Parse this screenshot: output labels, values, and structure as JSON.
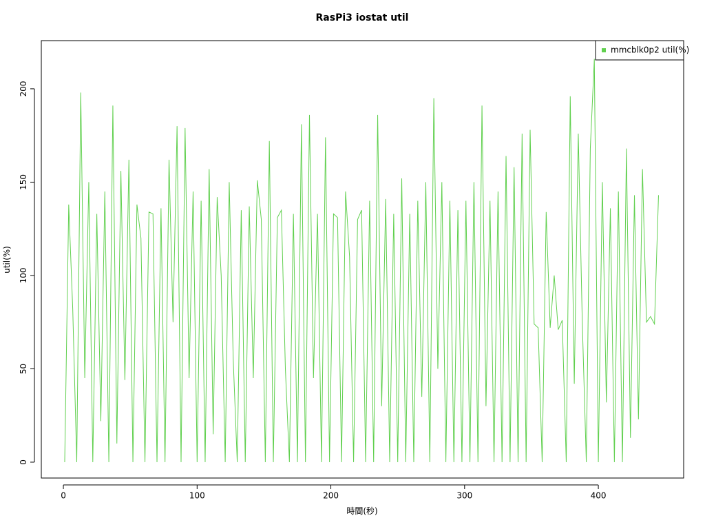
{
  "chart_data": {
    "type": "line",
    "title": "RasPi3 iostat util",
    "x_label": "時間(秒)",
    "y_label": "util(%)",
    "x": [
      1,
      4,
      7,
      10,
      13,
      16,
      19,
      22,
      25,
      28,
      31,
      34,
      37,
      40,
      43,
      46,
      49,
      52,
      55,
      58,
      61,
      64,
      67,
      70,
      73,
      76,
      79,
      82,
      85,
      88,
      91,
      94,
      97,
      100,
      103,
      106,
      109,
      112,
      115,
      118,
      121,
      124,
      127,
      130,
      133,
      136,
      139,
      142,
      145,
      148,
      151,
      154,
      157,
      160,
      163,
      166,
      169,
      172,
      175,
      178,
      181,
      184,
      187,
      190,
      193,
      196,
      199,
      202,
      205,
      208,
      211,
      214,
      217,
      220,
      223,
      226,
      229,
      232,
      235,
      238,
      241,
      244,
      247,
      250,
      253,
      256,
      259,
      262,
      265,
      268,
      271,
      274,
      277,
      280,
      283,
      286,
      289,
      292,
      295,
      298,
      301,
      304,
      307,
      310,
      313,
      316,
      319,
      322,
      325,
      328,
      331,
      334,
      337,
      340,
      343,
      346,
      349,
      352,
      355,
      358,
      361,
      364,
      367,
      370,
      373,
      376,
      379,
      382,
      385,
      388,
      391,
      394,
      397,
      400,
      403,
      406,
      409,
      412,
      415,
      418,
      421,
      424,
      427,
      430,
      433,
      436,
      439,
      442,
      445
    ],
    "series": [
      {
        "name": "mmcblk0p2 util(%)",
        "color": "#61d04f",
        "values": [
          0,
          138,
          82,
          0,
          198,
          45,
          150,
          0,
          133,
          22,
          145,
          0,
          191,
          10,
          156,
          44,
          162,
          0,
          138,
          120,
          0,
          134,
          133,
          0,
          136,
          0,
          162,
          75,
          180,
          0,
          179,
          45,
          145,
          0,
          140,
          0,
          157,
          15,
          142,
          100,
          0,
          150,
          55,
          0,
          135,
          0,
          137,
          45,
          151,
          130,
          0,
          172,
          0,
          131,
          135,
          50,
          0,
          133,
          0,
          181,
          0,
          186,
          45,
          133,
          0,
          174,
          0,
          133,
          131,
          0,
          145,
          110,
          0,
          130,
          135,
          0,
          140,
          0,
          186,
          30,
          141,
          0,
          133,
          0,
          152,
          0,
          133,
          0,
          140,
          35,
          150,
          0,
          195,
          50,
          150,
          0,
          140,
          0,
          135,
          0,
          140,
          0,
          150,
          0,
          191,
          30,
          140,
          0,
          145,
          0,
          164,
          0,
          158,
          0,
          176,
          0,
          178,
          74,
          72,
          0,
          134,
          72,
          100,
          71,
          76,
          0,
          196,
          42,
          176,
          75,
          0,
          168,
          216,
          0,
          150,
          32,
          136,
          0,
          145,
          0,
          168,
          13,
          143,
          23,
          157,
          75,
          78,
          74,
          143
        ]
      }
    ],
    "xlim": [
      -16.5,
      463.8
    ],
    "ylim": [
      -8.5,
      225.8
    ],
    "xticks": [
      0,
      100,
      200,
      300,
      400
    ],
    "yticks": [
      0,
      50,
      100,
      150,
      200
    ],
    "legend": "top-right"
  }
}
